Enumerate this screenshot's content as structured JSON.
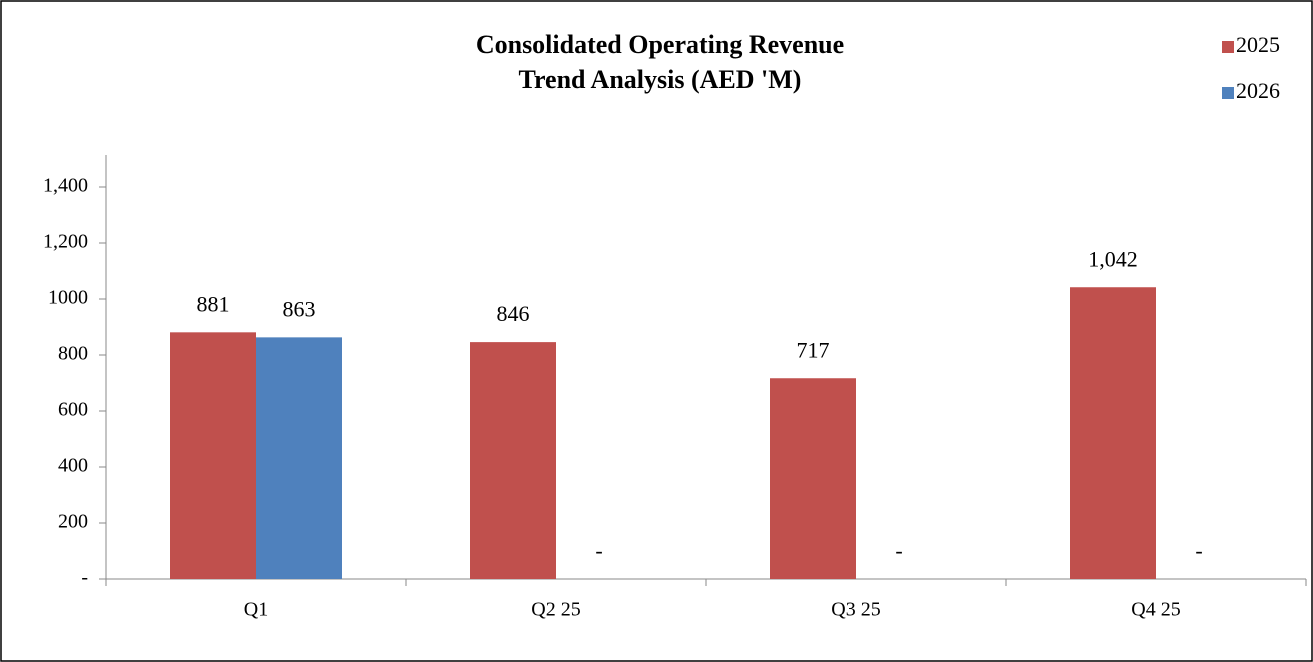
{
  "chart_data": {
    "type": "bar",
    "title": "Consolidated Operating Revenue",
    "subtitle": "Trend Analysis (AED 'M)",
    "categories": [
      "Q1",
      "Q2 25",
      "Q3 25",
      "Q4 25"
    ],
    "series": [
      {
        "name": "2025",
        "color": "#c0504d",
        "values": [
          881,
          846,
          717,
          1042
        ],
        "value_labels": [
          "881",
          "846",
          "717",
          "1,042"
        ]
      },
      {
        "name": "2026",
        "color": "#4f81bd",
        "values": [
          863,
          0,
          0,
          0
        ],
        "value_labels": [
          "863",
          "-",
          "-",
          "-"
        ]
      }
    ],
    "ylim": [
      0,
      1500
    ],
    "yticks": [
      {
        "value": 0,
        "label": "-"
      },
      200,
      400,
      600,
      800,
      1000,
      {
        "value": 1200,
        "label": "1,200"
      },
      {
        "value": 1400,
        "label": "1,400"
      }
    ],
    "grid": false,
    "legend": "top-right"
  }
}
